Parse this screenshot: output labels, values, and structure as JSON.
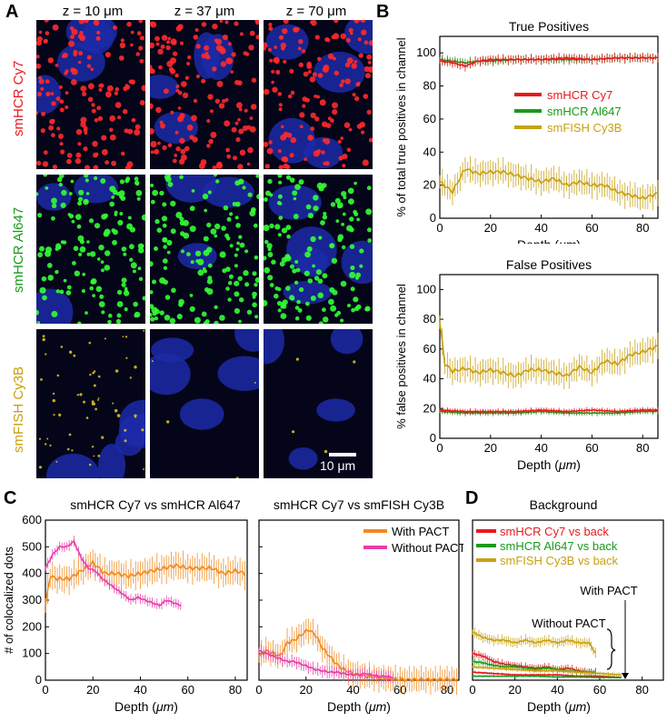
{
  "panelA": {
    "letter": "A",
    "z_titles": [
      "z = 10 μm",
      "z = 37 μm",
      "z = 70 μm"
    ],
    "row_labels": [
      "smHCR Cy7",
      "smHCR Al647",
      "smFISH Cy3B"
    ],
    "row_colors": [
      "#e8191c",
      "#1a9a1a",
      "#c8a010"
    ],
    "scalebar_label": "10 μm"
  },
  "panelB": {
    "letter": "B",
    "charts": [
      {
        "type": "line",
        "title": "True Positives",
        "ylabel": "% of total true positives in channel",
        "xlabel": "Depth (μm)",
        "xlim": [
          0,
          86
        ],
        "ylim": [
          0,
          110
        ],
        "xticks": [
          0,
          20,
          40,
          60,
          80
        ],
        "yticks": [
          0,
          20,
          40,
          60,
          80,
          100
        ],
        "legend": [
          "smHCR Cy7",
          "smHCR Al647",
          "smFISH Cy3B"
        ],
        "series": [
          {
            "name": "smHCR Cy7",
            "color": "#e8191c",
            "x": [
              0,
              5,
              10,
              15,
              20,
              30,
              40,
              50,
              60,
              70,
              80,
              86
            ],
            "y": [
              95,
              94,
              92,
              95,
              96,
              96,
              96,
              97,
              96,
              97,
              97,
              97
            ],
            "err": 3
          },
          {
            "name": "smHCR Al647",
            "color": "#1a9a1a",
            "x": [
              0,
              5,
              10,
              15,
              20,
              30,
              40,
              50,
              60,
              70,
              80,
              86
            ],
            "y": [
              96,
              95,
              94,
              95,
              95,
              96,
              96,
              96,
              96,
              97,
              97,
              97
            ],
            "err": 3
          },
          {
            "name": "smFISH Cy3B",
            "color": "#c8a010",
            "x": [
              0,
              5,
              10,
              15,
              20,
              25,
              30,
              35,
              40,
              45,
              50,
              55,
              60,
              65,
              70,
              75,
              80,
              86
            ],
            "y": [
              22,
              16,
              30,
              27,
              28,
              28,
              26,
              24,
              22,
              24,
              20,
              22,
              20,
              20,
              16,
              14,
              12,
              15
            ],
            "err": 8
          }
        ]
      },
      {
        "type": "line",
        "title": "False Positives",
        "ylabel": "% false positives in channel",
        "xlabel": "Depth (μm)",
        "xlim": [
          0,
          86
        ],
        "ylim": [
          0,
          110
        ],
        "xticks": [
          0,
          20,
          40,
          60,
          80
        ],
        "yticks": [
          0,
          20,
          40,
          60,
          80,
          100
        ],
        "series": [
          {
            "name": "smHCR Cy7",
            "color": "#e8191c",
            "x": [
              0,
              10,
              20,
              30,
              40,
              50,
              60,
              70,
              80,
              86
            ],
            "y": [
              19,
              18,
              18,
              18,
              19,
              18,
              19,
              18,
              19,
              19
            ],
            "err": 2
          },
          {
            "name": "smHCR Al647",
            "color": "#1a9a1a",
            "x": [
              0,
              10,
              20,
              30,
              40,
              50,
              60,
              70,
              80,
              86
            ],
            "y": [
              18,
              17,
              17,
              17,
              18,
              17,
              17,
              17,
              18,
              18
            ],
            "err": 2
          },
          {
            "name": "smFISH Cy3B",
            "color": "#c8a010",
            "x": [
              0,
              2,
              5,
              10,
              15,
              20,
              25,
              30,
              35,
              40,
              45,
              50,
              55,
              60,
              65,
              70,
              75,
              80,
              86
            ],
            "y": [
              78,
              50,
              45,
              47,
              44,
              46,
              44,
              42,
              46,
              46,
              44,
              42,
              48,
              44,
              52,
              50,
              56,
              58,
              62
            ],
            "err": 9
          }
        ]
      }
    ]
  },
  "panelC": {
    "letter": "C",
    "shared_ylabel": "# of colocalized dots",
    "legend": [
      "With PACT",
      "Without PACT"
    ],
    "charts": [
      {
        "type": "line",
        "title": "smHCR Cy7 vs smHCR Al647",
        "xlabel": "Depth (μm)",
        "xlim": [
          0,
          85
        ],
        "ylim": [
          0,
          600
        ],
        "xticks": [
          0,
          20,
          40,
          60,
          80
        ],
        "yticks": [
          0,
          100,
          200,
          300,
          400,
          500,
          600
        ],
        "series": [
          {
            "name": "With PACT",
            "color": "#f08a1e",
            "x": [
              0,
              2,
              5,
              10,
              15,
              20,
              25,
              30,
              35,
              40,
              45,
              50,
              55,
              60,
              65,
              70,
              75,
              80,
              84
            ],
            "y": [
              280,
              390,
              380,
              380,
              410,
              440,
              400,
              400,
              390,
              400,
              410,
              420,
              430,
              420,
              420,
              420,
              400,
              410,
              400
            ],
            "err": 55
          },
          {
            "name": "Without PACT",
            "color": "#e83ca8",
            "x": [
              0,
              3,
              6,
              9,
              12,
              15,
              18,
              21,
              24,
              27,
              30,
              33,
              36,
              39,
              42,
              45,
              48,
              51,
              54,
              57
            ],
            "y": [
              420,
              470,
              500,
              500,
              520,
              460,
              420,
              410,
              380,
              360,
              340,
              320,
              300,
              310,
              300,
              290,
              280,
              300,
              290,
              280
            ],
            "err": 20
          }
        ]
      },
      {
        "type": "line",
        "title": "smHCR Cy7 vs smFISH Cy3B",
        "xlabel": "Depth (μm)",
        "xlim": [
          0,
          85
        ],
        "ylim": [
          0,
          600
        ],
        "xticks": [
          0,
          20,
          40,
          60,
          80
        ],
        "series": [
          {
            "name": "With PACT",
            "color": "#f08a1e",
            "x": [
              0,
              3,
              6,
              9,
              12,
              15,
              18,
              21,
              24,
              27,
              30,
              33,
              36,
              40,
              45,
              50,
              55,
              58,
              62,
              70,
              80,
              84
            ],
            "y": [
              90,
              110,
              100,
              90,
              140,
              150,
              170,
              190,
              170,
              120,
              90,
              60,
              40,
              25,
              15,
              10,
              5,
              3,
              2,
              2,
              2,
              2
            ],
            "err": 50
          },
          {
            "name": "Without PACT",
            "color": "#e83ca8",
            "x": [
              0,
              3,
              6,
              9,
              12,
              15,
              18,
              21,
              24,
              27,
              30,
              33,
              36,
              39,
              42,
              45,
              48,
              51,
              54,
              57
            ],
            "y": [
              110,
              100,
              90,
              80,
              70,
              70,
              60,
              50,
              40,
              35,
              30,
              30,
              25,
              20,
              20,
              25,
              20,
              15,
              15,
              10
            ],
            "err": 25
          }
        ]
      }
    ]
  },
  "panelD": {
    "letter": "D",
    "chart": {
      "type": "line",
      "title": "Background",
      "xlabel": "Depth (μm)",
      "xlim": [
        0,
        90
      ],
      "ylim": [
        0,
        600
      ],
      "xticks": [
        0,
        20,
        40,
        60,
        80
      ],
      "legend": [
        "smHCR Cy7 vs back",
        "smHCR Al647 vs back",
        "smFISH Cy3B vs back"
      ],
      "annotations": [
        "With PACT",
        "Without PACT"
      ],
      "series": [
        {
          "name": "smHCR Cy7 vs back (Without PACT)",
          "color": "#e8191c",
          "x": [
            0,
            5,
            10,
            15,
            20,
            25,
            30,
            35,
            40,
            45,
            50,
            55,
            58
          ],
          "y": [
            100,
            90,
            70,
            60,
            55,
            50,
            45,
            50,
            40,
            45,
            35,
            30,
            30
          ],
          "err": 15
        },
        {
          "name": "smHCR Al647 vs back (Without PACT)",
          "color": "#1a9a1a",
          "x": [
            0,
            5,
            10,
            15,
            20,
            25,
            30,
            35,
            40,
            45,
            50,
            55,
            58
          ],
          "y": [
            70,
            65,
            55,
            50,
            50,
            45,
            40,
            45,
            40,
            35,
            30,
            30,
            30
          ],
          "err": 12
        },
        {
          "name": "smFISH Cy3B vs back (Without PACT)",
          "color": "#c8a010",
          "x": [
            0,
            5,
            10,
            15,
            20,
            25,
            30,
            35,
            40,
            45,
            50,
            55,
            58
          ],
          "y": [
            180,
            160,
            150,
            150,
            140,
            150,
            140,
            150,
            140,
            150,
            140,
            140,
            100
          ],
          "err": 20
        },
        {
          "name": "smHCR Cy7 vs back (With PACT)",
          "color": "#e8191c",
          "x": [
            0,
            10,
            20,
            30,
            40,
            50,
            60,
            70
          ],
          "y": [
            30,
            25,
            20,
            20,
            20,
            15,
            15,
            10
          ],
          "err": 5
        },
        {
          "name": "smHCR Al647 vs back (With PACT)",
          "color": "#1a9a1a",
          "x": [
            0,
            10,
            20,
            30,
            40,
            50,
            60,
            70
          ],
          "y": [
            15,
            15,
            15,
            15,
            12,
            12,
            10,
            10
          ],
          "err": 4
        },
        {
          "name": "smFISH Cy3B vs back (With PACT)",
          "color": "#c8a010",
          "x": [
            0,
            10,
            20,
            30,
            40,
            50,
            60,
            70
          ],
          "y": [
            50,
            45,
            40,
            35,
            35,
            30,
            25,
            20
          ],
          "err": 8
        }
      ]
    }
  }
}
